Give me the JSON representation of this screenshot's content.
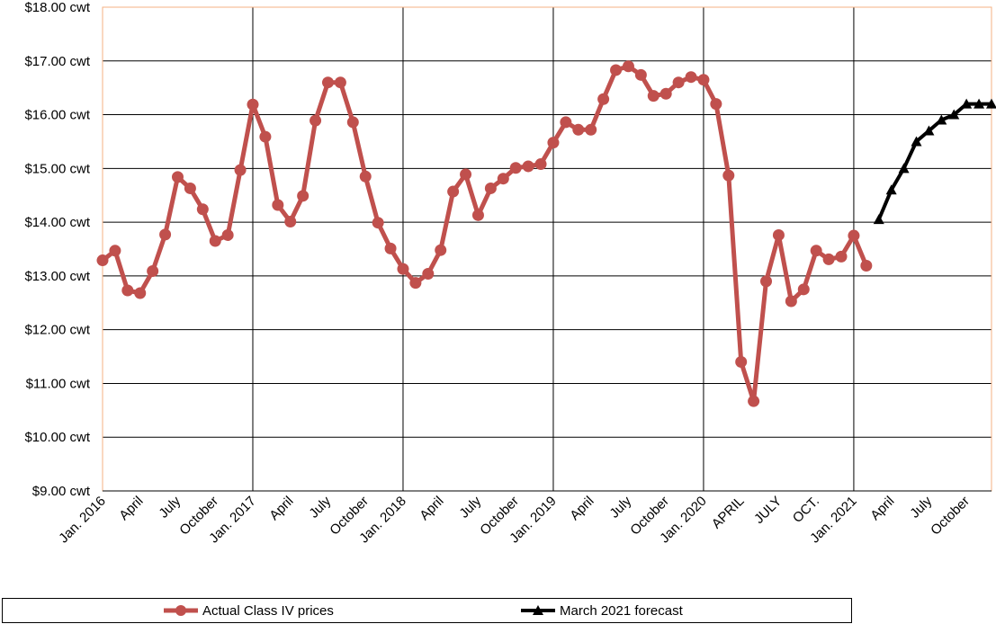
{
  "chart_data": {
    "type": "line",
    "ylim": [
      9,
      18
    ],
    "y_ticks": [
      "$9.00 cwt",
      "$10.00 cwt",
      "$11.00 cwt",
      "$12.00 cwt",
      "$13.00 cwt",
      "$14.00 cwt",
      "$15.00 cwt",
      "$16.00 cwt",
      "$17.00 cwt",
      "$18.00 cwt"
    ],
    "y_tick_values": [
      9,
      10,
      11,
      12,
      13,
      14,
      15,
      16,
      17,
      18
    ],
    "x_tick_labels": [
      "Jan. 2016",
      "April",
      "July",
      "October",
      "Jan. 2017",
      "April",
      "July",
      "October",
      "Jan. 2018",
      "April",
      "July",
      "October",
      "Jan. 2019",
      "April",
      "July",
      "October",
      "Jan. 2020",
      "APRIL",
      "JULY",
      "OCT.",
      "Jan. 2021",
      "April",
      "July",
      "October"
    ],
    "x_tick_months": [
      0,
      3,
      6,
      9,
      12,
      15,
      18,
      21,
      24,
      27,
      30,
      33,
      36,
      39,
      42,
      45,
      48,
      51,
      54,
      57,
      60,
      63,
      66,
      69
    ],
    "x_range_months": [
      0,
      71
    ],
    "vertical_grid_months": [
      12,
      24,
      36,
      48,
      60
    ],
    "grid": true,
    "legend_position": "bottom",
    "series": [
      {
        "name": "Actual Class IV prices",
        "color": "#c0504d",
        "marker": "circle",
        "start_month": 0,
        "values": [
          13.29,
          13.47,
          12.73,
          12.68,
          13.09,
          13.77,
          14.84,
          14.63,
          14.24,
          13.65,
          13.76,
          14.97,
          16.19,
          15.59,
          14.32,
          14.01,
          14.49,
          15.89,
          16.6,
          16.6,
          15.86,
          14.85,
          13.99,
          13.51,
          13.13,
          12.87,
          13.04,
          13.48,
          14.57,
          14.89,
          14.13,
          14.63,
          14.81,
          15.01,
          15.04,
          15.08,
          15.48,
          15.86,
          15.72,
          15.72,
          16.29,
          16.83,
          16.9,
          16.74,
          16.35,
          16.39,
          16.6,
          16.7,
          16.65,
          16.2,
          14.87,
          11.4,
          10.67,
          12.9,
          13.76,
          12.53,
          12.75,
          13.47,
          13.31,
          13.36,
          13.75,
          13.19
        ]
      },
      {
        "name": "March 2021 forecast",
        "color": "#000000",
        "marker": "triangle",
        "start_month": 62,
        "values": [
          14.05,
          14.6,
          15.0,
          15.5,
          15.7,
          15.9,
          16.0,
          16.2,
          16.2,
          16.2
        ]
      }
    ]
  }
}
